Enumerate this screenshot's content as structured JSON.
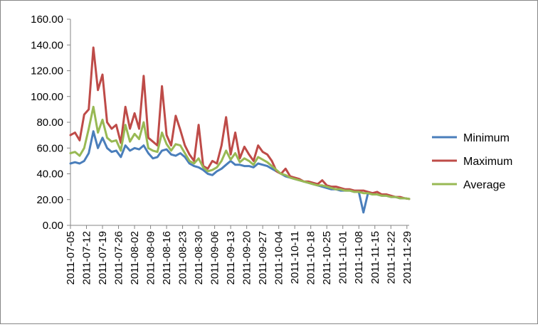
{
  "chart_data": {
    "type": "line",
    "title": "",
    "xlabel": "",
    "ylabel": "",
    "ylim": [
      0,
      160
    ],
    "y_ticks": [
      "0.00",
      "20.00",
      "40.00",
      "60.00",
      "80.00",
      "100.00",
      "120.00",
      "140.00",
      "160.00"
    ],
    "grid": "off",
    "legend_position": "right",
    "x": [
      "2011-07-05",
      "2011-07-07",
      "2011-07-09",
      "2011-07-11",
      "2011-07-13",
      "2011-07-15",
      "2011-07-17",
      "2011-07-19",
      "2011-07-21",
      "2011-07-23",
      "2011-07-25",
      "2011-07-27",
      "2011-07-29",
      "2011-07-31",
      "2011-08-02",
      "2011-08-04",
      "2011-08-06",
      "2011-08-08",
      "2011-08-10",
      "2011-08-12",
      "2011-08-14",
      "2011-08-16",
      "2011-08-18",
      "2011-08-20",
      "2011-08-22",
      "2011-08-24",
      "2011-08-26",
      "2011-08-28",
      "2011-08-30",
      "2011-09-01",
      "2011-09-03",
      "2011-09-05",
      "2011-09-07",
      "2011-09-09",
      "2011-09-11",
      "2011-09-13",
      "2011-09-15",
      "2011-09-17",
      "2011-09-19",
      "2011-09-21",
      "2011-09-23",
      "2011-09-25",
      "2011-09-27",
      "2011-09-29",
      "2011-10-01",
      "2011-10-03",
      "2011-10-05",
      "2011-10-07",
      "2011-10-09",
      "2011-10-11",
      "2011-10-13",
      "2011-10-15",
      "2011-10-17",
      "2011-10-19",
      "2011-10-21",
      "2011-10-23",
      "2011-10-25",
      "2011-10-27",
      "2011-10-29",
      "2011-10-31",
      "2011-11-02",
      "2011-11-04",
      "2011-11-06",
      "2011-11-08",
      "2011-11-10",
      "2011-11-12",
      "2011-11-14",
      "2011-11-16",
      "2011-11-18",
      "2011-11-20",
      "2011-11-22",
      "2011-11-24",
      "2011-11-26",
      "2011-11-28",
      "2011-11-30"
    ],
    "x_tick_labels": [
      "2011-07-05",
      "2011-07-12",
      "2011-07-19",
      "2011-07-26",
      "2011-08-02",
      "2011-08-09",
      "2011-08-16",
      "2011-08-23",
      "2011-08-30",
      "2011-09-06",
      "2011-09-13",
      "2011-09-20",
      "2011-09-27",
      "2011-10-04",
      "2011-10-11",
      "2011-10-18",
      "2011-10-25",
      "2011-11-01",
      "2011-11-08",
      "2011-11-15",
      "2011-11-22",
      "2011-11-29"
    ],
    "series": [
      {
        "name": "Minimum",
        "color": "#4a7ebb",
        "values": [
          48,
          49,
          48,
          50,
          56,
          73,
          60,
          68,
          60,
          57,
          58,
          53,
          62,
          58,
          60,
          59,
          62,
          56,
          52,
          53,
          58,
          59,
          55,
          54,
          56,
          53,
          48,
          46,
          45,
          43,
          40,
          39,
          42,
          44,
          47,
          50,
          47,
          47,
          46,
          46,
          45,
          48,
          47,
          46,
          44,
          42,
          40,
          38,
          37,
          36,
          35,
          34,
          33,
          32,
          31,
          30,
          29,
          28,
          28,
          27,
          27,
          27,
          26,
          26,
          10,
          25,
          24,
          24,
          23,
          23,
          22,
          22,
          21,
          21,
          20.5
        ]
      },
      {
        "name": "Maximum",
        "color": "#be4b48",
        "values": [
          70,
          72,
          66,
          86,
          90,
          138,
          105,
          117,
          80,
          75,
          78,
          64,
          92,
          75,
          87,
          75,
          116,
          68,
          65,
          62,
          108,
          70,
          62,
          85,
          74,
          62,
          55,
          50,
          78,
          46,
          44,
          50,
          48,
          62,
          84,
          55,
          72,
          52,
          61,
          55,
          50,
          62,
          57,
          55,
          50,
          42,
          40,
          44,
          38,
          37,
          36,
          34,
          34,
          33,
          32,
          35,
          31,
          30,
          30,
          29,
          28,
          28,
          27,
          27,
          27,
          26,
          25,
          26,
          24,
          24,
          23,
          22,
          22,
          21,
          20.5
        ]
      },
      {
        "name": "Average",
        "color": "#98b954",
        "values": [
          56,
          57,
          54,
          60,
          75,
          92,
          72,
          82,
          68,
          65,
          66,
          58,
          78,
          65,
          71,
          67,
          80,
          60,
          58,
          57,
          72,
          63,
          58,
          63,
          62,
          56,
          50,
          48,
          52,
          45,
          42,
          43,
          45,
          50,
          58,
          51,
          56,
          49,
          52,
          50,
          47,
          53,
          51,
          49,
          46,
          43,
          40,
          39,
          37,
          36,
          35,
          34,
          33,
          32,
          31,
          31,
          30,
          29,
          28,
          28,
          27,
          27,
          26,
          26,
          25,
          25,
          24,
          24,
          23,
          23,
          22,
          22,
          21,
          21,
          20.5
        ]
      }
    ]
  }
}
